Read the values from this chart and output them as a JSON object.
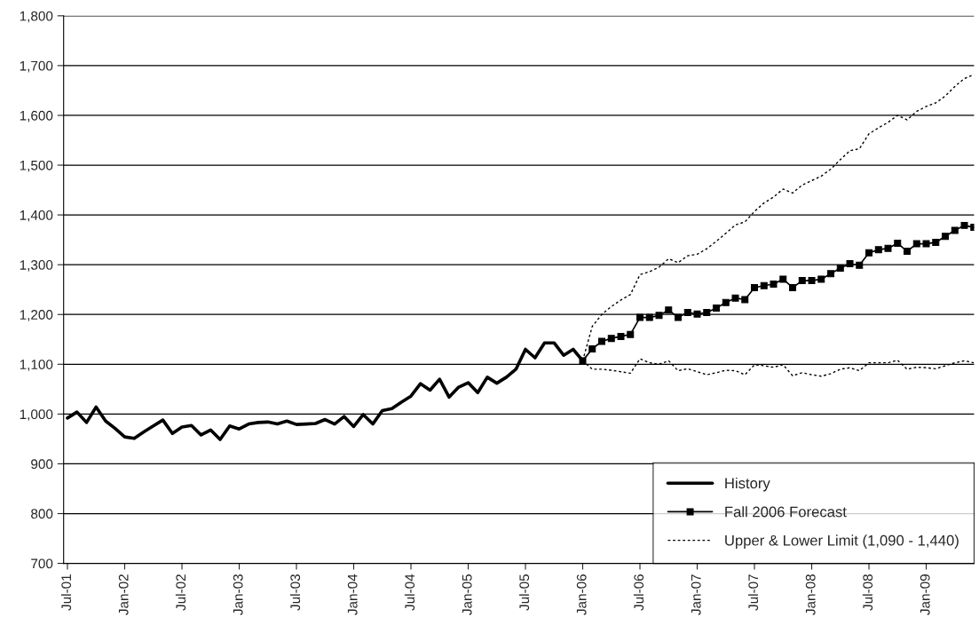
{
  "chart_data": {
    "type": "line",
    "categories": [
      "Jul-01",
      null,
      null,
      null,
      null,
      null,
      "Jan-02",
      null,
      null,
      null,
      null,
      null,
      "Jul-02",
      null,
      null,
      null,
      null,
      null,
      "Jan-03",
      null,
      null,
      null,
      null,
      null,
      "Jul-03",
      null,
      null,
      null,
      null,
      null,
      "Jan-04",
      null,
      null,
      null,
      null,
      null,
      "Jul-04",
      null,
      null,
      null,
      null,
      null,
      "Jan-05",
      null,
      null,
      null,
      null,
      null,
      "Jul-05",
      null,
      null,
      null,
      null,
      null,
      "Jan-06",
      null,
      null,
      null,
      null,
      null,
      "Jul-06",
      null,
      null,
      null,
      null,
      null,
      "Jan-07",
      null,
      null,
      null,
      null,
      null,
      "Jul-07",
      null,
      null,
      null,
      null,
      null,
      "Jan-08",
      null,
      null,
      null,
      null,
      null,
      "Jul-08",
      null,
      null,
      null,
      null,
      null,
      "Jan-09",
      null,
      null,
      null,
      null,
      null
    ],
    "series": [
      {
        "name": "History",
        "color": "#000000",
        "line_style": "solid",
        "marker": "none",
        "values": [
          992,
          1004,
          983,
          1014,
          986,
          971,
          954,
          951,
          964,
          976,
          988,
          961,
          974,
          977,
          958,
          968,
          949,
          976,
          970,
          980,
          983,
          984,
          980,
          986,
          979,
          980,
          981,
          989,
          980,
          995,
          975,
          999,
          980,
          1007,
          1011,
          1024,
          1036,
          1061,
          1048,
          1070,
          1034,
          1054,
          1063,
          1043,
          1074,
          1062,
          1074,
          1090,
          1130,
          1113,
          1143,
          1143,
          1118,
          1130,
          1107,
          null,
          null,
          null,
          null,
          null,
          null,
          null,
          null,
          null,
          null,
          null,
          null,
          null,
          null,
          null,
          null,
          null,
          null,
          null,
          null,
          null,
          null,
          null,
          null,
          null,
          null,
          null,
          null,
          null,
          null,
          null,
          null,
          null,
          null,
          null,
          null,
          null,
          null,
          null,
          null,
          null
        ]
      },
      {
        "name": "Fall 2006 Forecast",
        "color": "#000000",
        "line_style": "solid",
        "marker": "square",
        "values": [
          null,
          null,
          null,
          null,
          null,
          null,
          null,
          null,
          null,
          null,
          null,
          null,
          null,
          null,
          null,
          null,
          null,
          null,
          null,
          null,
          null,
          null,
          null,
          null,
          null,
          null,
          null,
          null,
          null,
          null,
          null,
          null,
          null,
          null,
          null,
          null,
          null,
          null,
          null,
          null,
          null,
          null,
          null,
          null,
          null,
          null,
          null,
          null,
          null,
          null,
          null,
          null,
          null,
          null,
          1107,
          1131,
          1146,
          1152,
          1156,
          1160,
          1194,
          1194,
          1198,
          1209,
          1194,
          1204,
          1201,
          1204,
          1213,
          1224,
          1233,
          1230,
          1254,
          1258,
          1261,
          1271,
          1254,
          1268,
          1268,
          1271,
          1282,
          1293,
          1302,
          1299,
          1324,
          1330,
          1333,
          1343,
          1327,
          1342,
          1342,
          1345,
          1357,
          1369,
          1379,
          1375
        ]
      },
      {
        "name": "Upper & Lower Limit (1,090 - 1,440)",
        "color": "#000000",
        "line_style": "dotted",
        "marker": "none",
        "values": [
          null,
          null,
          null,
          null,
          null,
          null,
          null,
          null,
          null,
          null,
          null,
          null,
          null,
          null,
          null,
          null,
          null,
          null,
          null,
          null,
          null,
          null,
          null,
          null,
          null,
          null,
          null,
          null,
          null,
          null,
          null,
          null,
          null,
          null,
          null,
          null,
          null,
          null,
          null,
          null,
          null,
          null,
          null,
          null,
          null,
          null,
          null,
          null,
          null,
          null,
          null,
          null,
          null,
          null,
          1107,
          1176,
          1200,
          1216,
          1229,
          1240,
          1280,
          1286,
          1295,
          1312,
          1304,
          1318,
          1321,
          1332,
          1347,
          1363,
          1380,
          1386,
          1407,
          1424,
          1436,
          1452,
          1444,
          1460,
          1469,
          1478,
          1492,
          1511,
          1529,
          1533,
          1563,
          1575,
          1586,
          1600,
          1591,
          1608,
          1618,
          1625,
          1639,
          1658,
          1674,
          1682
        ]
      },
      {
        "color": "#000000",
        "line_style": "dotted",
        "marker": "none",
        "values": [
          null,
          null,
          null,
          null,
          null,
          null,
          null,
          null,
          null,
          null,
          null,
          null,
          null,
          null,
          null,
          null,
          null,
          null,
          null,
          null,
          null,
          null,
          null,
          null,
          null,
          null,
          null,
          null,
          null,
          null,
          null,
          null,
          null,
          null,
          null,
          null,
          null,
          null,
          null,
          null,
          null,
          null,
          null,
          null,
          null,
          null,
          null,
          null,
          null,
          null,
          null,
          null,
          null,
          null,
          1107,
          1090,
          1090,
          1088,
          1085,
          1082,
          1111,
          1103,
          1100,
          1107,
          1087,
          1091,
          1085,
          1079,
          1083,
          1088,
          1087,
          1079,
          1099,
          1097,
          1094,
          1099,
          1077,
          1083,
          1079,
          1076,
          1081,
          1090,
          1093,
          1087,
          1103,
          1103,
          1103,
          1108,
          1090,
          1094,
          1093,
          1091,
          1097,
          1103,
          1107,
          1103
        ]
      }
    ],
    "ylim": [
      700,
      1800
    ],
    "yticks": [
      700,
      800,
      900,
      {
        "value": 1000,
        "label": "1,000"
      },
      {
        "value": 1100,
        "label": "1,100"
      },
      {
        "value": 1200,
        "label": "1,200"
      },
      {
        "value": 1300,
        "label": "1,300"
      },
      {
        "value": 1400,
        "label": "1,400"
      },
      {
        "value": 1500,
        "label": "1,500"
      },
      {
        "value": 1600,
        "label": "1,600"
      },
      {
        "value": 1700,
        "label": "1,700"
      },
      {
        "value": 1800,
        "label": "1,800"
      }
    ],
    "grid": "y",
    "legend": "bottom right"
  }
}
